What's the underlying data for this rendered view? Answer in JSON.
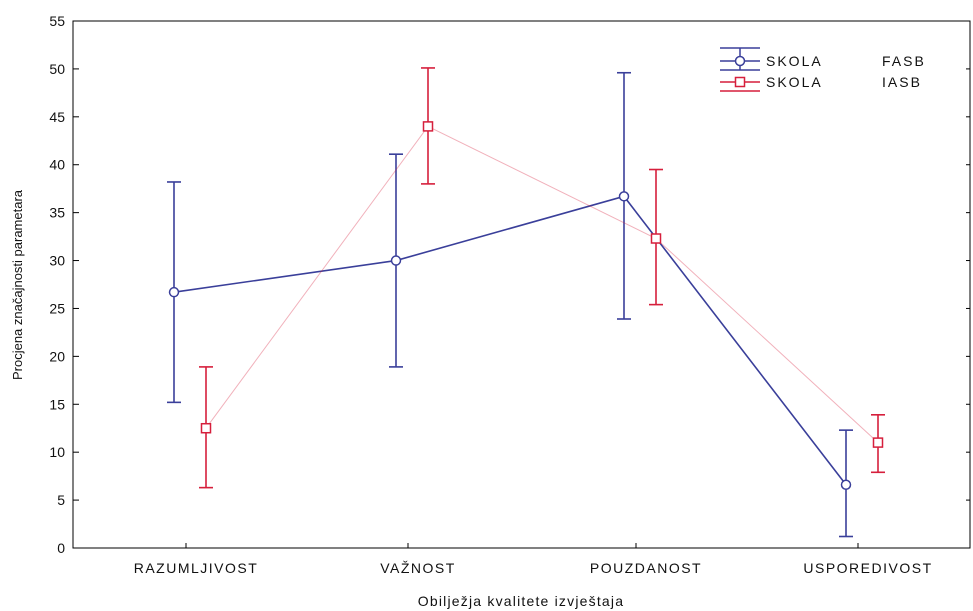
{
  "chart_data": {
    "type": "line",
    "xlabel": "Obilježja kvalitete izvještaja",
    "ylabel": "Procjena značajnosti parametara",
    "ylim": [
      0,
      55
    ],
    "yticks": [
      "0",
      "5",
      "10",
      "15",
      "20",
      "25",
      "30",
      "35",
      "40",
      "45",
      "50",
      "55"
    ],
    "categories": [
      "RAZUMLJIVOST",
      "VAŽNOST",
      "POUZDANOST",
      "USPOREDIVOST"
    ],
    "legend_position": "top-right",
    "grid": false,
    "error_bars": true,
    "series": [
      {
        "name_parts": [
          "SKOLA",
          "FASB"
        ],
        "color": "#3a3f9a",
        "marker": "circle",
        "values": [
          26.7,
          30.0,
          36.7,
          6.6
        ],
        "lower": [
          15.2,
          18.9,
          23.9,
          1.2
        ],
        "upper": [
          38.2,
          41.1,
          49.6,
          12.3
        ]
      },
      {
        "name_parts": [
          "SKOLA",
          "IASB"
        ],
        "color": "#d61f3c",
        "marker": "square",
        "values": [
          12.5,
          44.0,
          32.3,
          11.0
        ],
        "lower": [
          6.3,
          38.0,
          25.4,
          7.9
        ],
        "upper": [
          18.9,
          50.1,
          39.5,
          13.9
        ]
      }
    ]
  }
}
